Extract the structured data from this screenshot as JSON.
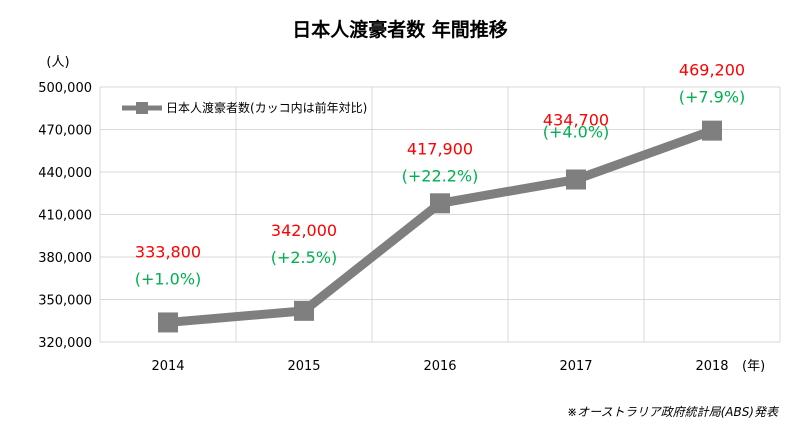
{
  "chart_data": {
    "type": "line",
    "title": "日本人渡豪者数 年間推移",
    "y_unit": "(人)",
    "x_unit": "(年)",
    "categories": [
      "2014",
      "2015",
      "2016",
      "2017",
      "2018"
    ],
    "series": [
      {
        "name": "日本人渡豪者数(カッコ内は前年対比)",
        "values": [
          333800,
          342000,
          417900,
          434700,
          469200
        ]
      }
    ],
    "value_labels": [
      "333,800",
      "342,000",
      "417,900",
      "434,700",
      "469,200"
    ],
    "change_labels": [
      "(+1.0%)",
      "(+2.5%)",
      "(+22.2%)",
      "(+4.0%)",
      "(+7.9%)"
    ],
    "ylim": [
      320000,
      500000
    ],
    "y_ticks": [
      "320,000",
      "350,000",
      "380,000",
      "410,000",
      "440,000",
      "470,000",
      "500,000"
    ],
    "grid": true,
    "legend_position": "top-left",
    "source_note": "※オーストラリア政府統計局(ABS)発表",
    "colors": {
      "line": "#7f7f7f",
      "grid": "#d9d9d9",
      "value_label": "#ff0000",
      "change_label": "#00b050"
    }
  }
}
